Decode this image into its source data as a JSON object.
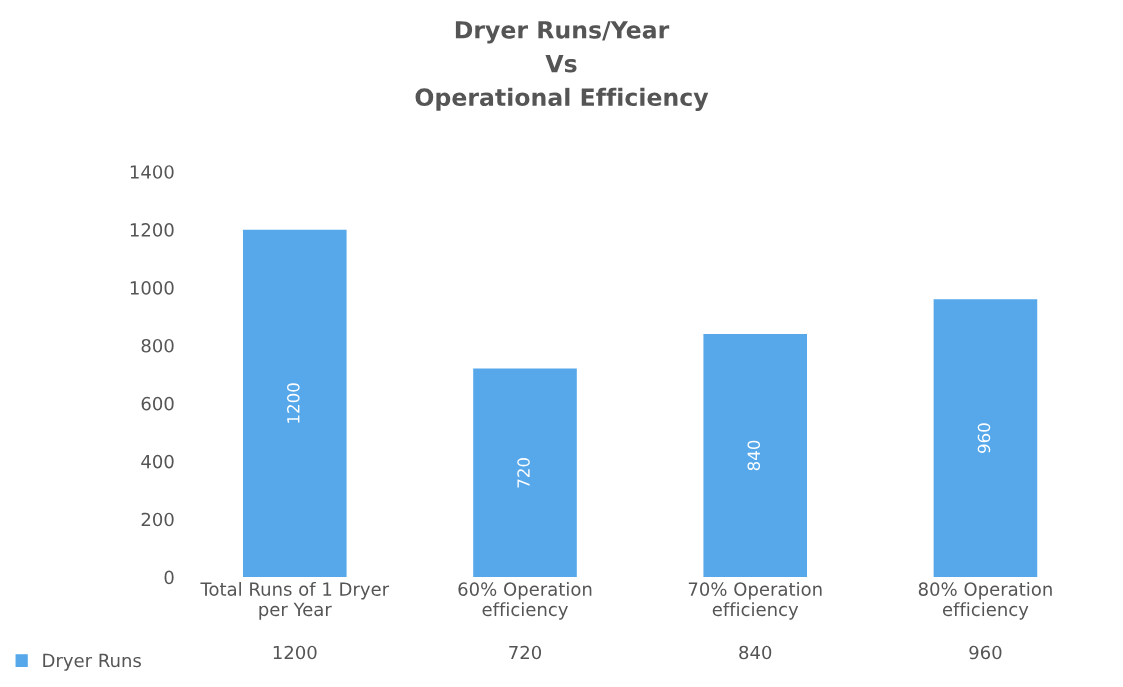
{
  "chart_data": {
    "type": "bar",
    "title": "Dryer Runs/Year\nVs\nOperational Efficiency",
    "categories": [
      "Total Runs of 1 Dryer\nper Year",
      "60% Operation\nefficiency",
      "70% Operation\nefficiency",
      "80% Operation\nefficiency"
    ],
    "series": [
      {
        "name": "Dryer Runs",
        "color": "#56a8ea",
        "values": [
          1200,
          720,
          840,
          960
        ],
        "value_labels": [
          "1200",
          "720",
          "840",
          "960"
        ]
      }
    ],
    "ylim": [
      0,
      1400
    ],
    "yticks": [
      0,
      200,
      400,
      600,
      800,
      1000,
      1200,
      1400
    ],
    "annotations": [
      "1200",
      "720",
      "840",
      "960"
    ],
    "data_labels": true,
    "legend": "bottom left",
    "grid": false
  }
}
